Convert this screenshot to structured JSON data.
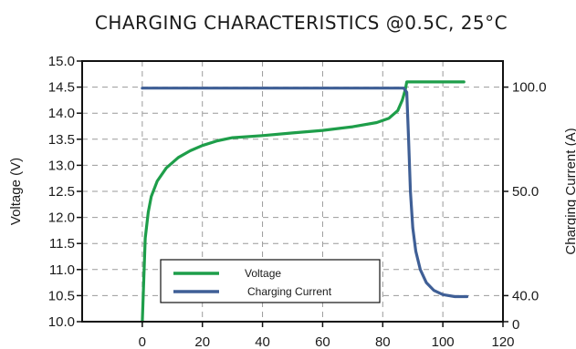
{
  "chart_data": {
    "type": "line",
    "title": "CHARGING CHARACTERISTICS @0.5C, 25°C",
    "xlabel": "",
    "ylabel": "Voltage (V)",
    "y2label": "Charging Current (A)",
    "xlim": [
      -20,
      120
    ],
    "ylim": [
      10.0,
      15.0
    ],
    "x_ticks": [
      "0",
      "20",
      "40",
      "60",
      "80",
      "100",
      "120"
    ],
    "y_ticks": [
      "10.0",
      "10.5",
      "11.0",
      "11.5",
      "12.0",
      "12.5",
      "13.0",
      "13.5",
      "14.0",
      "14.5",
      "15.0"
    ],
    "y2_ticks": [
      "0",
      "40.0",
      "50.0",
      "100.0"
    ],
    "grid": true,
    "legend_position": "bottom-left",
    "series": [
      {
        "name": "Voltage",
        "axis": "left",
        "color": "#1e9e4a",
        "points": [
          [
            0,
            10.0
          ],
          [
            0.5,
            10.8
          ],
          [
            1,
            11.6
          ],
          [
            2,
            12.1
          ],
          [
            3,
            12.4
          ],
          [
            5,
            12.7
          ],
          [
            8,
            12.95
          ],
          [
            12,
            13.15
          ],
          [
            16,
            13.28
          ],
          [
            20,
            13.38
          ],
          [
            25,
            13.47
          ],
          [
            30,
            13.53
          ],
          [
            40,
            13.57
          ],
          [
            50,
            13.62
          ],
          [
            60,
            13.67
          ],
          [
            70,
            13.74
          ],
          [
            78,
            13.82
          ],
          [
            82,
            13.9
          ],
          [
            85,
            14.05
          ],
          [
            86.5,
            14.25
          ],
          [
            87.5,
            14.45
          ],
          [
            88,
            14.6
          ],
          [
            95,
            14.6
          ],
          [
            107,
            14.6
          ]
        ]
      },
      {
        "name": "Charging Current",
        "axis": "right",
        "color": "#3f5f96",
        "points": [
          [
            0,
            14.48
          ],
          [
            87,
            14.48
          ],
          [
            88,
            14.4
          ],
          [
            88.6,
            13.5
          ],
          [
            89.2,
            12.5
          ],
          [
            90,
            11.8
          ],
          [
            91,
            11.35
          ],
          [
            92.5,
            11.0
          ],
          [
            94.5,
            10.75
          ],
          [
            97,
            10.6
          ],
          [
            100,
            10.52
          ],
          [
            104,
            10.48
          ],
          [
            108,
            10.48
          ]
        ]
      }
    ]
  }
}
